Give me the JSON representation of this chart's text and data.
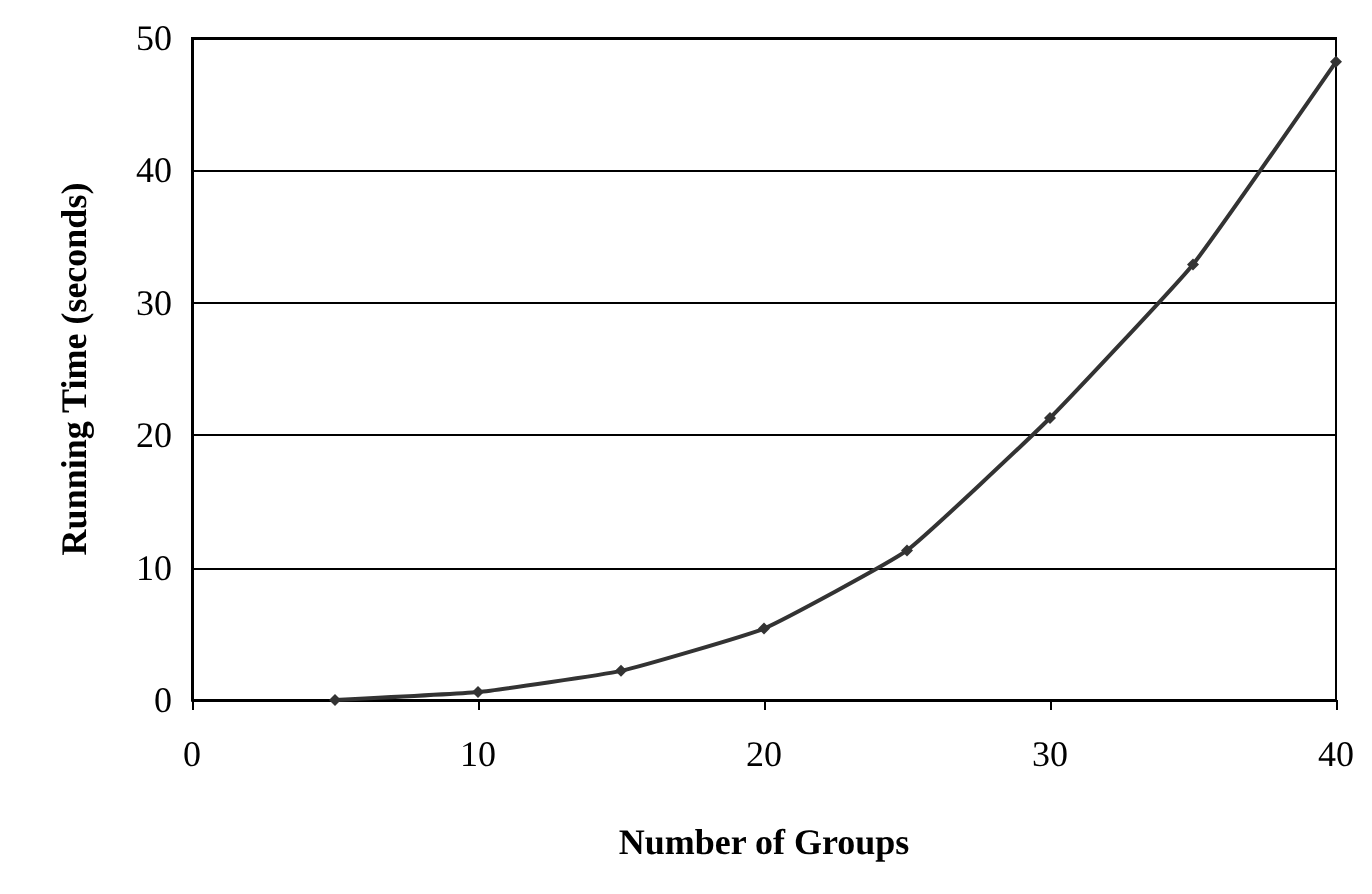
{
  "chart_data": {
    "type": "line",
    "xlabel": "Number of Groups",
    "ylabel": "Running Time (seconds)",
    "x": [
      5,
      10,
      15,
      20,
      25,
      30,
      35,
      40
    ],
    "series": [
      {
        "color": "#333333",
        "values": [
          0,
          0.6,
          2.2,
          5.4,
          11.3,
          21.3,
          32.9,
          48.2
        ]
      }
    ],
    "xlim": [
      0,
      40
    ],
    "xticks": [
      0,
      10,
      20,
      30,
      40
    ],
    "ylim": [
      0,
      50
    ],
    "yticks": [
      0,
      10,
      20,
      30,
      40,
      50
    ],
    "grid": "y",
    "marker": "diamond",
    "line_style": "solid"
  }
}
